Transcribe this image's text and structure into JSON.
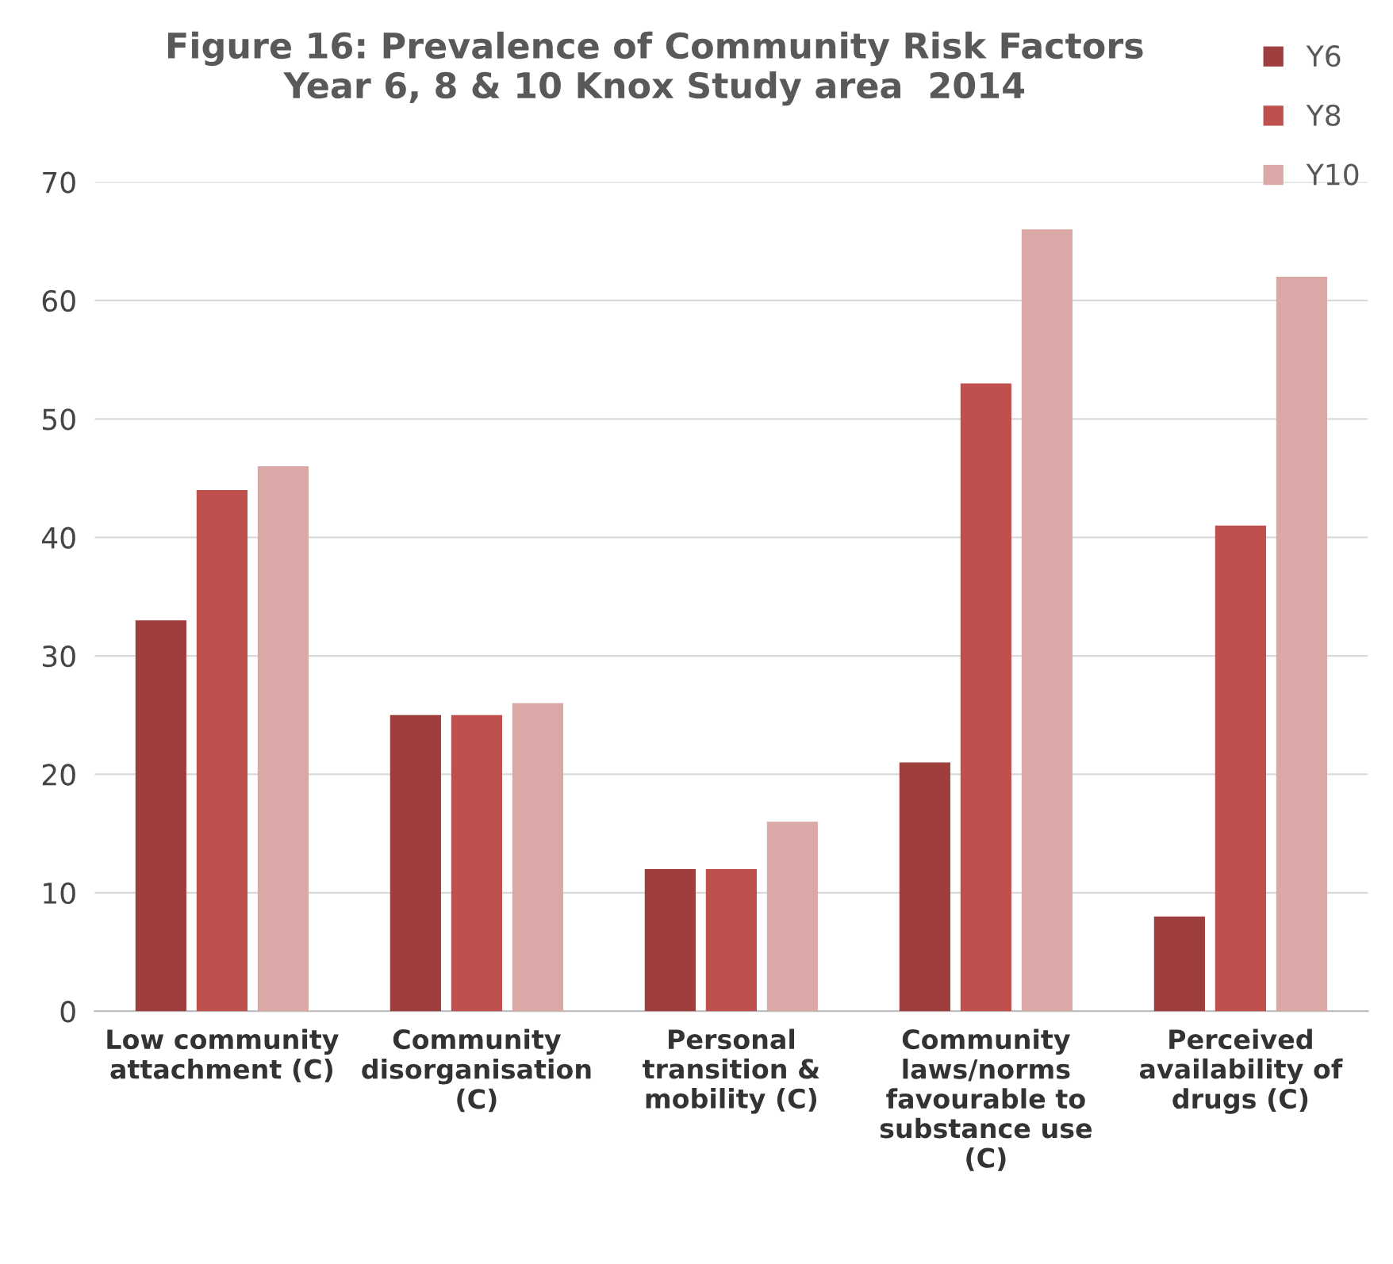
{
  "chart_data": {
    "type": "bar",
    "title": "Figure 16: Prevalence of Community Risk Factors\nYear 6, 8 & 10 Knox Study area  2014",
    "categories": [
      "Low community\nattachment (C)",
      "Community\ndisorganisation\n(C)",
      "Personal\ntransition &\nmobility (C)",
      "Community\nlaws/norms\nfavourable to\nsubstance use\n(C)",
      "Perceived\navailability of\ndrugs (C)"
    ],
    "series": [
      {
        "name": "Y6",
        "color": "#9e3f3d",
        "values": [
          33,
          25,
          12,
          21,
          8
        ]
      },
      {
        "name": "Y8",
        "color": "#c0504d",
        "values": [
          44,
          25,
          12,
          53,
          41
        ]
      },
      {
        "name": "Y10",
        "color": "#d9a8a7",
        "values": [
          46,
          26,
          16,
          66,
          62
        ]
      }
    ],
    "ylim": [
      0,
      70
    ],
    "yticks": [
      0,
      10,
      20,
      30,
      40,
      50,
      60,
      70
    ],
    "grid": "y",
    "legend": "top right"
  }
}
